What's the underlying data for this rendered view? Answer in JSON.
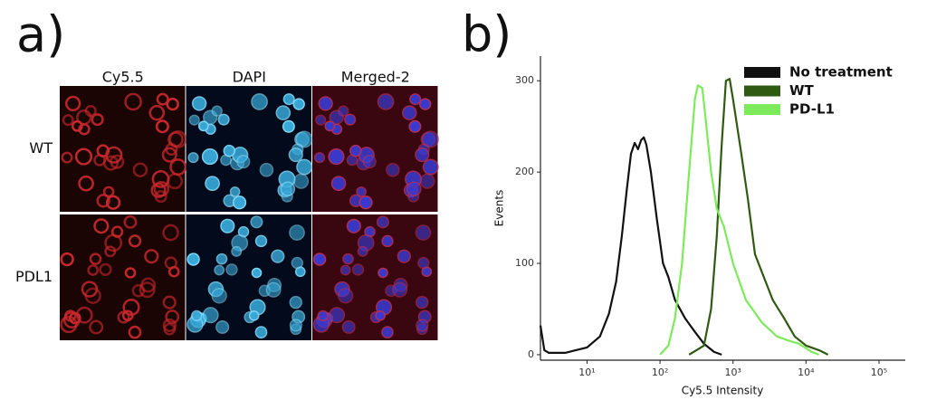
{
  "panel_a": {
    "label": "a)",
    "columns": [
      "Cy5.5",
      "DAPI",
      "Merged-2"
    ],
    "rows": [
      "WT",
      "PDL1"
    ]
  },
  "chart_data": {
    "type": "line",
    "panel_label": "b)",
    "x_label": "Cy5.5 Intensity",
    "y_label": "Events",
    "xscale": "log",
    "xlim": [
      2.3,
      229000
    ],
    "ylim": [
      -6,
      327
    ],
    "xticks": [
      {
        "value": 10,
        "label": "10¹"
      },
      {
        "value": 100,
        "label": "10²"
      },
      {
        "value": 1000,
        "label": "10³"
      },
      {
        "value": 10000,
        "label": "10⁴"
      },
      {
        "value": 100000,
        "label": "10⁵"
      }
    ],
    "yticks": [
      0,
      100,
      200,
      300
    ],
    "legend": "upper right",
    "series": [
      {
        "name": "No treatment",
        "color": "#111111",
        "x": [
          2.3,
          2.6,
          3,
          5,
          10,
          15,
          20,
          25,
          30,
          35,
          40,
          45,
          50,
          55,
          60,
          65,
          75,
          90,
          110,
          130,
          160,
          220,
          300,
          400,
          550,
          700
        ],
        "values": [
          32,
          5,
          2,
          2,
          8,
          20,
          45,
          80,
          130,
          180,
          220,
          232,
          225,
          235,
          238,
          230,
          200,
          150,
          100,
          85,
          60,
          40,
          25,
          12,
          3,
          0
        ]
      },
      {
        "name": "WT",
        "color": "#2f5a12",
        "x": [
          250,
          400,
          500,
          600,
          700,
          800,
          900,
          1000,
          1300,
          1600,
          2000,
          2500,
          3500,
          5000,
          7000,
          10000,
          15000,
          20000
        ],
        "values": [
          0,
          10,
          50,
          130,
          230,
          300,
          302,
          280,
          220,
          170,
          110,
          90,
          60,
          40,
          20,
          10,
          5,
          0
        ]
      },
      {
        "name": "PD-L1",
        "color": "#7dea5c",
        "x": [
          100,
          130,
          160,
          200,
          250,
          300,
          330,
          380,
          420,
          500,
          600,
          750,
          1000,
          1500,
          2500,
          4000,
          6000,
          8000,
          12000,
          15000
        ],
        "values": [
          0,
          10,
          40,
          100,
          200,
          280,
          295,
          292,
          260,
          200,
          160,
          140,
          100,
          60,
          35,
          20,
          15,
          12,
          3,
          0
        ]
      }
    ]
  }
}
